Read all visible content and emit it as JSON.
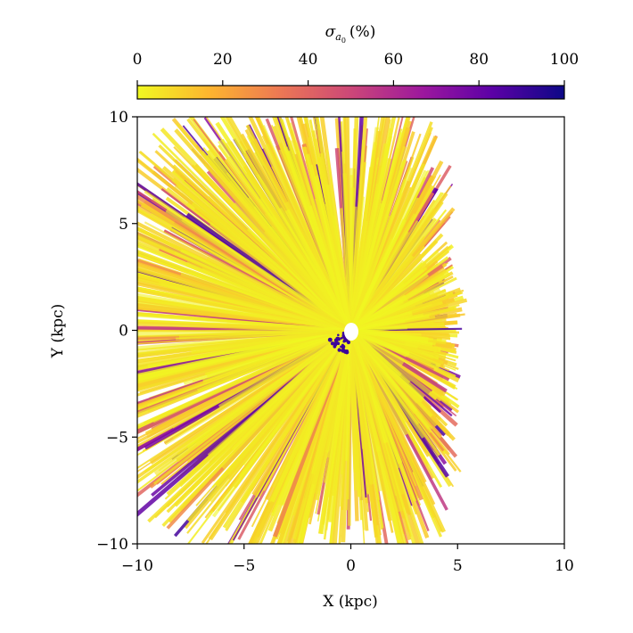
{
  "chart_data": {
    "type": "heatmap",
    "description_free": true,
    "xlabel": "X (kpc)",
    "ylabel": "Y (kpc)",
    "xlim": [
      -10,
      10
    ],
    "ylim": [
      -10,
      10
    ],
    "xticks": [
      -10,
      -5,
      0,
      5,
      10
    ],
    "yticks": [
      -10,
      -5,
      0,
      5,
      10
    ],
    "xtick_labels": [
      "−10",
      "−5",
      "0",
      "5",
      "10"
    ],
    "ytick_labels": [
      "−10",
      "−5",
      "0",
      "5",
      "10"
    ],
    "grid": false,
    "colormap": "plasma_r",
    "colorbar": {
      "position": "top",
      "label_symbol": "σ",
      "label_subscript": "a",
      "label_subsubscript": "0",
      "label_unit": "(%)",
      "range": [
        0,
        100
      ],
      "ticks": [
        0,
        20,
        40,
        60,
        80,
        100
      ],
      "tick_labels": [
        "0",
        "20",
        "40",
        "60",
        "80",
        "100"
      ]
    },
    "sun_position": [
      0,
      0
    ],
    "coverage": {
      "radial_extent_by_direction_kpc": [
        {
          "angle_deg": 0,
          "r": 4.8
        },
        {
          "angle_deg": 15,
          "r": 5.2
        },
        {
          "angle_deg": 30,
          "r": 5.0
        },
        {
          "angle_deg": 45,
          "r": 6.0
        },
        {
          "angle_deg": 60,
          "r": 8.5
        },
        {
          "angle_deg": 75,
          "r": 10.5
        },
        {
          "angle_deg": 90,
          "r": 10.0
        },
        {
          "angle_deg": 180,
          "r": 14.0
        },
        {
          "angle_deg": 270,
          "r": 10.0
        },
        {
          "angle_deg": 285,
          "r": 10.5
        },
        {
          "angle_deg": 300,
          "r": 9.0
        },
        {
          "angle_deg": 315,
          "r": 6.5
        },
        {
          "angle_deg": 330,
          "r": 5.3
        },
        {
          "angle_deg": 345,
          "r": 4.8
        }
      ],
      "typical_value_pct": 5,
      "high_uncertainty_value_pct": 90
    }
  },
  "colors": {
    "cmap_stops": [
      "#f0f921",
      "#fdb42f",
      "#ed7953",
      "#cc4778",
      "#9c179e",
      "#5c01a6",
      "#0d0887"
    ]
  }
}
